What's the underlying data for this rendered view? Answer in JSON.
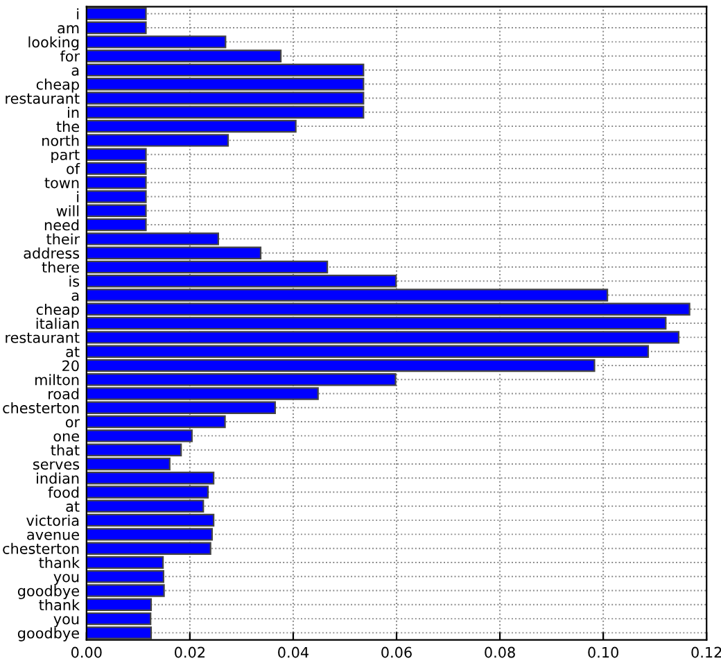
{
  "chart_data": {
    "type": "bar",
    "orientation": "horizontal",
    "categories": [
      "i",
      "am",
      "looking",
      "for",
      "a",
      "cheap",
      "restaurant",
      "in",
      "the",
      "north",
      "part",
      "of",
      "town",
      "i",
      "will",
      "need",
      "their",
      "address",
      "there",
      "is",
      "a",
      "cheap",
      "italian",
      "restaurant",
      "at",
      "20",
      "milton",
      "road",
      "chesterton",
      "or",
      "one",
      "that",
      "serves",
      "indian",
      "food",
      "at",
      "victoria",
      "avenue",
      "chesterton",
      "thank",
      "you",
      "goodbye",
      "thank",
      "you",
      "goodbye"
    ],
    "values": [
      0.0115,
      0.0115,
      0.0269,
      0.0376,
      0.0536,
      0.0536,
      0.0536,
      0.0536,
      0.0405,
      0.0274,
      0.0115,
      0.0115,
      0.0115,
      0.0115,
      0.0115,
      0.0115,
      0.0255,
      0.0337,
      0.0466,
      0.0599,
      0.1008,
      0.1167,
      0.1121,
      0.1146,
      0.1087,
      0.0983,
      0.0598,
      0.0448,
      0.0365,
      0.0268,
      0.0204,
      0.0183,
      0.0161,
      0.0246,
      0.0235,
      0.0226,
      0.0246,
      0.0243,
      0.024,
      0.0148,
      0.0149,
      0.015,
      0.0125,
      0.0124,
      0.0125
    ],
    "color": "#0000ff",
    "xlim": [
      0,
      0.12
    ],
    "xticks": [
      {
        "value": 0,
        "label": "0.00"
      },
      {
        "value": 0.02,
        "label": "0.02"
      },
      {
        "value": 0.04,
        "label": "0.04"
      },
      {
        "value": 0.06,
        "label": "0.06"
      },
      {
        "value": 0.08,
        "label": "0.08"
      },
      {
        "value": 0.1,
        "label": "0.10"
      },
      {
        "value": 0.12,
        "label": "0.12"
      }
    ],
    "grid": true
  }
}
